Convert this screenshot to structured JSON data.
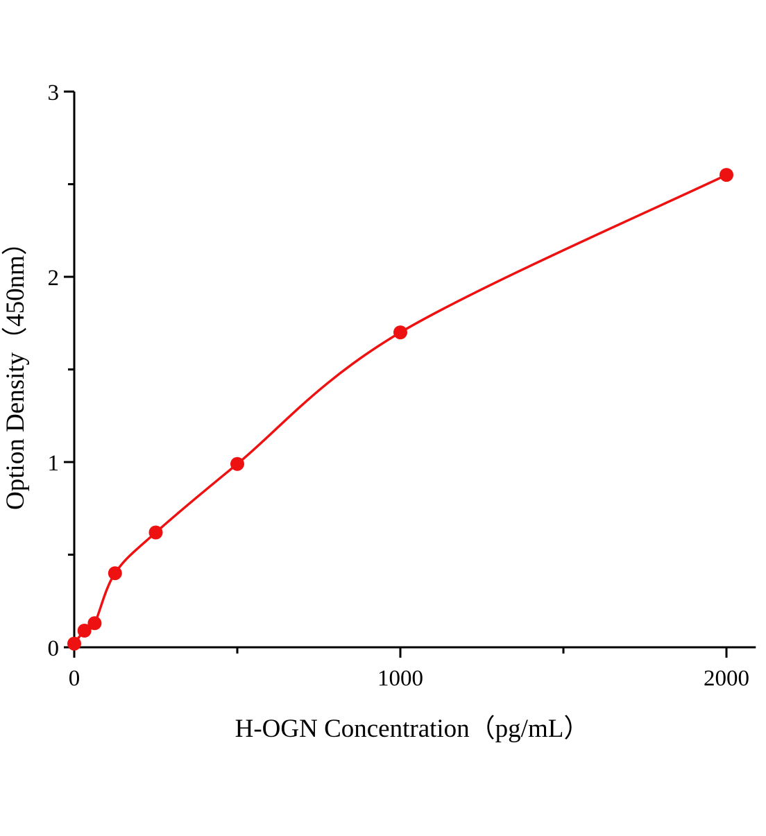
{
  "chart_data": {
    "type": "scatter",
    "title": "",
    "xlabel": "H-OGN Concentration（pg/mL）",
    "ylabel": "Option Density（450nm）",
    "x": [
      0,
      31.25,
      62.5,
      125,
      250,
      500,
      1000,
      2000
    ],
    "y": [
      0.02,
      0.09,
      0.13,
      0.4,
      0.62,
      0.99,
      1.7,
      2.55
    ],
    "xlim": [
      0,
      2090
    ],
    "ylim": [
      0,
      3
    ],
    "x_major_ticks": [
      0,
      1000,
      2000
    ],
    "x_major_labels": [
      "0",
      "1000",
      "2000"
    ],
    "x_minor_ticks": [
      500,
      1500
    ],
    "y_major_ticks": [
      0,
      1,
      2,
      3
    ],
    "y_major_labels": [
      "0",
      "1",
      "2",
      "3"
    ],
    "y_minor_ticks": [
      0.5,
      1.5,
      2.5
    ],
    "curve_color": "#ee1111",
    "point_color": "#ee1111",
    "axis_color": "#000000",
    "grid": false,
    "legend": false
  }
}
